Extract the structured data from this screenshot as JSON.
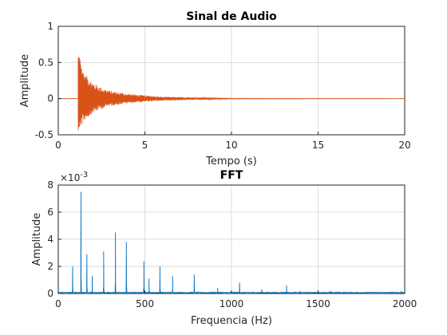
{
  "chart_data": [
    {
      "type": "line",
      "title": "Sinal de Audio",
      "xlabel": "Tempo (s)",
      "ylabel": "Amplitude",
      "xlim": [
        0,
        20
      ],
      "ylim": [
        -0.5,
        1
      ],
      "xticks": [
        "0",
        "5",
        "10",
        "15",
        "20"
      ],
      "yticks": [
        "-0.5",
        "0",
        "0.5",
        "1"
      ],
      "grid": true,
      "series": [
        {
          "color": "#d95319",
          "onset": 1.15,
          "peak_max": 0.65,
          "peak_min": -0.44,
          "decay_end": 10.0,
          "x": [
            1.15,
            1.3,
            1.5,
            2.0,
            2.5,
            3.0,
            4.0,
            5.0,
            6.0,
            8.0,
            10.0,
            20.0
          ],
          "y_max": [
            0.65,
            0.5,
            0.35,
            0.22,
            0.15,
            0.11,
            0.07,
            0.045,
            0.03,
            0.015,
            0.005,
            0.002
          ],
          "y_min": [
            -0.44,
            -0.38,
            -0.3,
            -0.2,
            -0.14,
            -0.1,
            -0.065,
            -0.045,
            -0.03,
            -0.015,
            -0.005,
            -0.002
          ]
        }
      ]
    },
    {
      "type": "line",
      "title": "FFT",
      "xlabel": "Frequencia (Hz)",
      "ylabel": "Amplitude",
      "xlim": [
        0,
        2000
      ],
      "ylim": [
        0,
        0.008
      ],
      "xticks": [
        "0",
        "500",
        "1000",
        "1500",
        "2000"
      ],
      "yticks": [
        "0",
        "2",
        "4",
        "6",
        "8"
      ],
      "y_exponent": "×10",
      "y_exponent_power": "-3",
      "grid": true,
      "series": [
        {
          "color": "#0072bd",
          "peaks_x": [
            83,
            131,
            165,
            196,
            262,
            330,
            393,
            494,
            524,
            587,
            660,
            785,
            920,
            1047,
            1175,
            1318,
            1396,
            1570,
            1980
          ],
          "peaks_y": [
            0.002,
            0.0075,
            0.0029,
            0.0013,
            0.0031,
            0.0045,
            0.0038,
            0.0024,
            0.0011,
            0.002,
            0.0013,
            0.0014,
            0.0004,
            0.0008,
            0.0003,
            0.0006,
            0.0002,
            0.0002,
            0.0002
          ]
        }
      ]
    }
  ]
}
